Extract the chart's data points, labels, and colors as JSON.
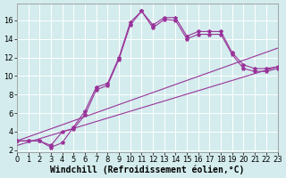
{
  "background_color": "#d4eced",
  "line_color": "#993399",
  "xlabel": "Windchill (Refroidissement éolien,°C)",
  "xlabel_fontsize": 7,
  "tick_fontsize": 6,
  "xlim": [
    0,
    23
  ],
  "ylim": [
    1.8,
    17.8
  ],
  "yticks": [
    2,
    4,
    6,
    8,
    10,
    12,
    14,
    16
  ],
  "xticks": [
    0,
    1,
    2,
    3,
    4,
    5,
    6,
    7,
    8,
    9,
    10,
    11,
    12,
    13,
    14,
    15,
    16,
    17,
    18,
    19,
    20,
    21,
    22,
    23
  ],
  "curve1_x": [
    0,
    1,
    2,
    3,
    4,
    5,
    6,
    7,
    8,
    9,
    10,
    11,
    12,
    13,
    14,
    15,
    16,
    17,
    18,
    19,
    20,
    21,
    22,
    23
  ],
  "curve1_y": [
    3.0,
    3.0,
    3.0,
    2.3,
    2.8,
    4.5,
    6.2,
    8.8,
    9.2,
    12.0,
    15.8,
    17.0,
    15.5,
    16.3,
    16.3,
    14.3,
    14.8,
    14.8,
    14.8,
    12.5,
    11.2,
    10.8,
    10.8,
    11.0
  ],
  "curve2_x": [
    0,
    1,
    2,
    3,
    4,
    5,
    6,
    7,
    8,
    9,
    10,
    11,
    12,
    13,
    14,
    15,
    16,
    17,
    18,
    19,
    20,
    21,
    22,
    23
  ],
  "curve2_y": [
    3.0,
    3.0,
    3.0,
    2.5,
    4.0,
    4.3,
    5.8,
    8.5,
    9.0,
    11.8,
    15.5,
    17.0,
    15.2,
    16.1,
    16.0,
    14.0,
    14.5,
    14.5,
    14.5,
    12.3,
    10.8,
    10.5,
    10.5,
    10.8
  ],
  "line1_x": [
    0,
    23
  ],
  "line1_y": [
    3.0,
    13.0
  ],
  "line2_x": [
    0,
    23
  ],
  "line2_y": [
    2.5,
    11.0
  ]
}
